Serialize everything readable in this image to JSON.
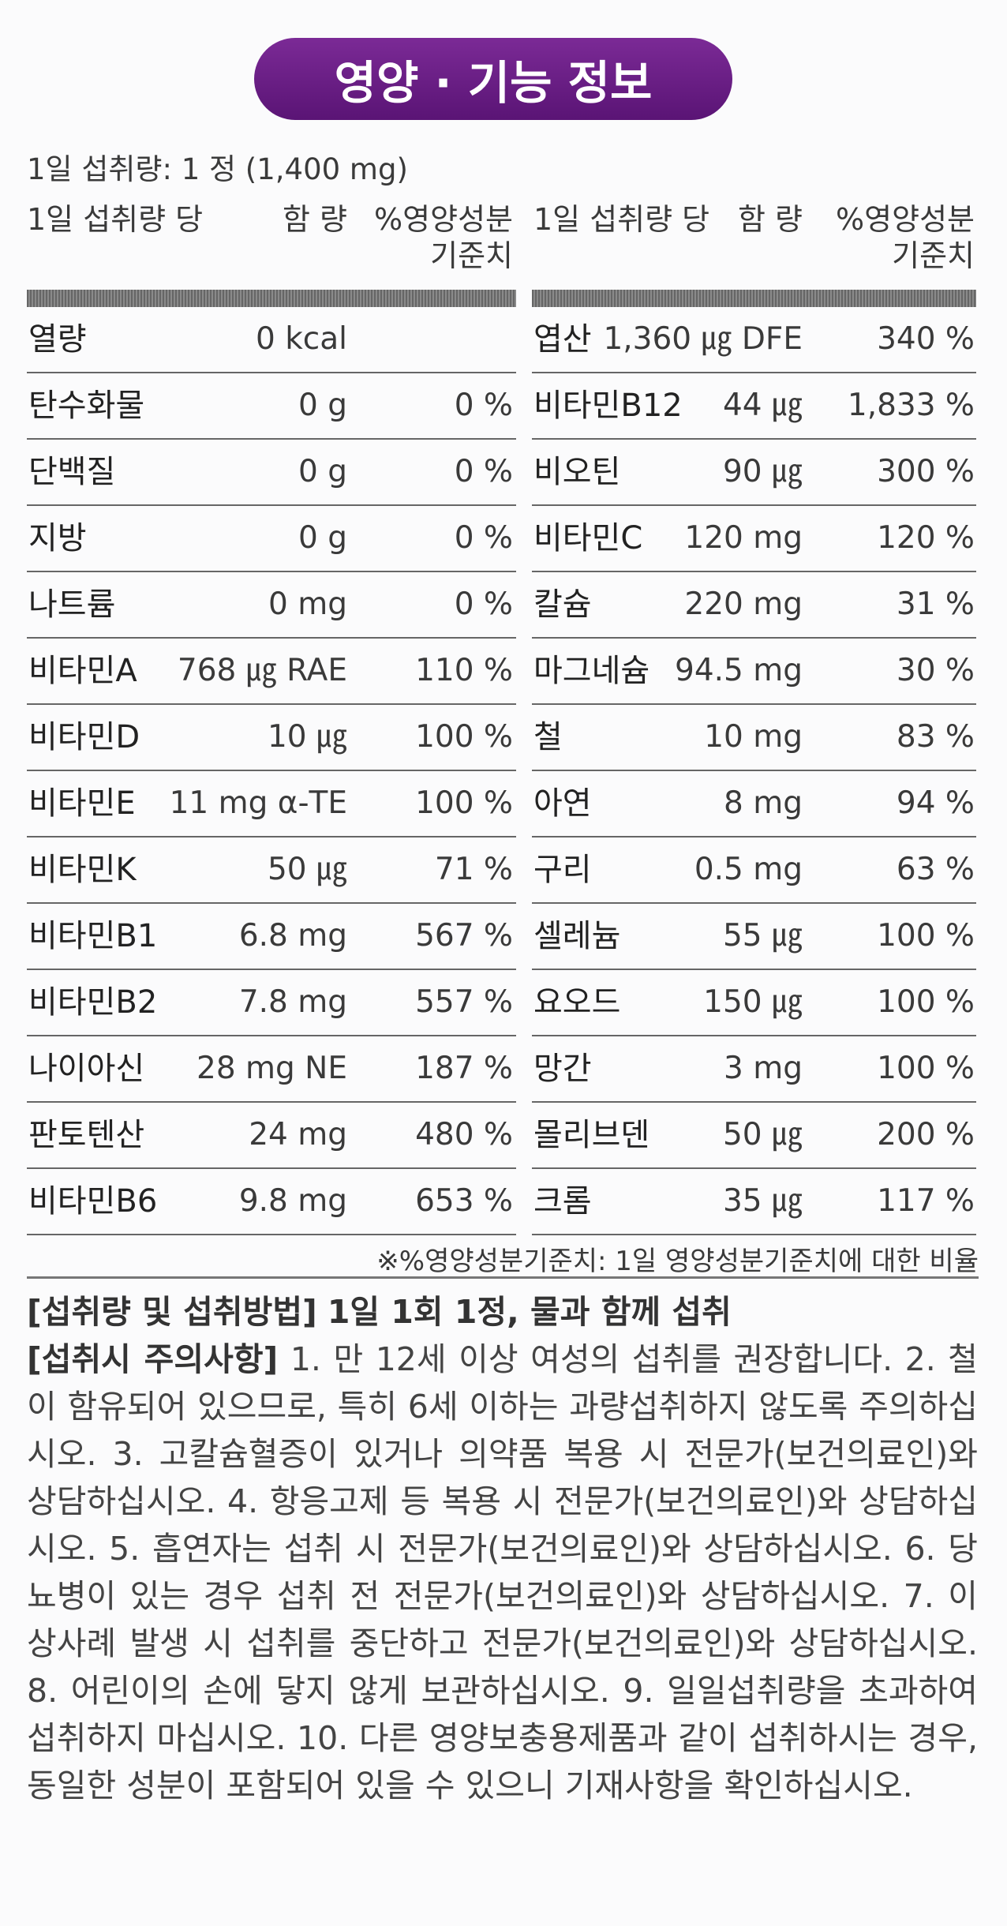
{
  "title": "영양 · 기능 정보",
  "serving_size": "1일 섭취량: 1 정 (1,400 mg)",
  "columns": [
    {
      "header": {
        "serving": "1일 섭취량 당",
        "amount": "함 량",
        "dv": [
          "%영양성분",
          "기준치"
        ]
      },
      "rows": [
        [
          "열량",
          "0 kcal"
        ],
        [
          "탄수화물",
          "0 g",
          "0 %"
        ],
        [
          "단백질",
          "0 g",
          "0 %"
        ],
        [
          "지방",
          "0 g",
          "0 %"
        ],
        [
          "나트륨",
          "0 mg",
          "0 %"
        ],
        [
          "비타민A",
          "768 ㎍ RAE",
          "110 %"
        ],
        [
          "비타민D",
          "10 ㎍",
          "100 %"
        ],
        [
          "비타민E",
          "11 mg α-TE",
          "100 %"
        ],
        [
          "비타민K",
          "50 ㎍",
          "71 %"
        ],
        [
          "비타민B1",
          "6.8 mg",
          "567 %"
        ],
        [
          "비타민B2",
          "7.8 mg",
          "557 %"
        ],
        [
          "나이아신",
          "28 mg NE",
          "187 %"
        ],
        [
          "판토텐산",
          "24 mg",
          "480 %"
        ],
        [
          "비타민B6",
          "9.8 mg",
          "653 %"
        ]
      ]
    },
    {
      "header": {
        "serving": "1일 섭취량 당",
        "amount": "함 량",
        "dv": [
          "%영양성분",
          "기준치"
        ]
      },
      "rows": [
        [
          "엽산",
          "1,360 ㎍ DFE",
          "340 %"
        ],
        [
          "비타민B12",
          "44 ㎍",
          "1,833 %"
        ],
        [
          "비오틴",
          "90 ㎍",
          "300 %"
        ],
        [
          "비타민C",
          "120 mg",
          "120 %"
        ],
        [
          "칼슘",
          "220 mg",
          "31 %"
        ],
        [
          "마그네슘",
          "94.5 mg",
          "30 %"
        ],
        [
          "철",
          "10 mg",
          "83 %"
        ],
        [
          "아연",
          "8 mg",
          "94 %"
        ],
        [
          "구리",
          "0.5 mg",
          "63 %"
        ],
        [
          "셀레늄",
          "55 ㎍",
          "100 %"
        ],
        [
          "요오드",
          "150 ㎍",
          "100 %"
        ],
        [
          "망간",
          "3 mg",
          "100 %"
        ],
        [
          "몰리브덴",
          "50 ㎍",
          "200 %"
        ],
        [
          "크롬",
          "35 ㎍",
          "117 %"
        ]
      ]
    }
  ],
  "footnote": "※%영양성분기준치: 1일 영양성분기준치에 대한 비율",
  "intake": {
    "label": "[섭취량 및 섭취방법]",
    "text": "1일 1회 1정, 물과 함께 섭취"
  },
  "caution": {
    "label": "[섭취시 주의사항]",
    "text": "1. 만 12세 이상 여성의 섭취를 권장합니다. 2. 철이 함유되어 있으므로, 특히 6세 이하는 과량섭취하지 않도록 주의하십시오. 3. 고칼슘혈증이 있거나 의약품 복용 시 전문가(보건의료인)와 상담하십시오. 4. 항응고제 등 복용 시 전문가(보건의료인)와 상담하십시오. 5. 흡연자는 섭취 시 전문가(보건의료인)와 상담하십시오. 6. 당뇨병이 있는 경우 섭취 전 전문가(보건의료인)와 상담하십시오. 7. 이상사례 발생 시 섭취를 중단하고 전문가(보건의료인)와 상담하십시오. 8. 어린이의 손에 닿지 않게 보관하십시오. 9. 일일섭취량을 초과하여 섭취하지 마십시오. 10. 다른 영양보충용제품과 같이 섭취하시는 경우, 동일한 성분이 포함되어 있을 수 있으니 기재사항을 확인하십시오."
  }
}
